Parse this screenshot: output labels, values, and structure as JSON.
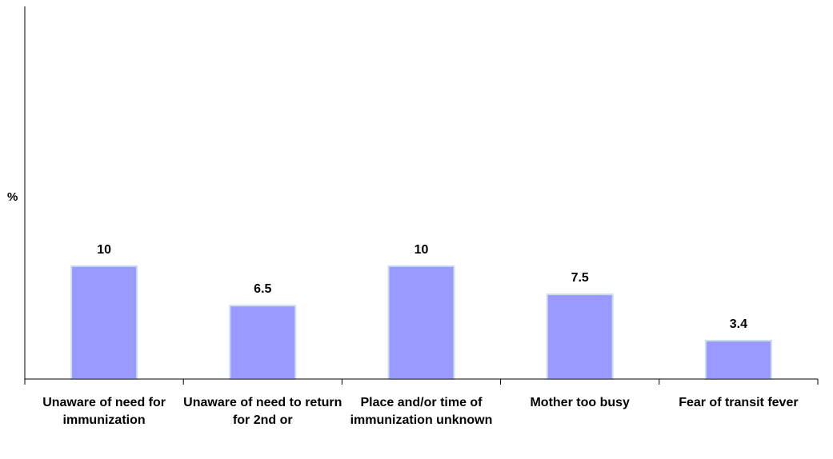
{
  "colors": {
    "bar_fill": "#9999ff",
    "bar_stroke": "#c8e0ee",
    "axis": "#000000",
    "text": "#000000"
  },
  "chart_data": {
    "type": "bar",
    "title": "",
    "xlabel": "",
    "ylabel": "%",
    "ylim": [
      0,
      33
    ],
    "grid": false,
    "legend": "none",
    "categories": [
      "Unaware of need for immunization",
      "Unaware of need to return for 2nd or",
      "Place and/or time of immunization unknown",
      "Mother too busy",
      "Fear of transit fever"
    ],
    "values": [
      10,
      6.5,
      10,
      7.5,
      3.4
    ],
    "data_labels": [
      "10",
      "6.5",
      "10",
      "7.5",
      "3.4"
    ]
  }
}
